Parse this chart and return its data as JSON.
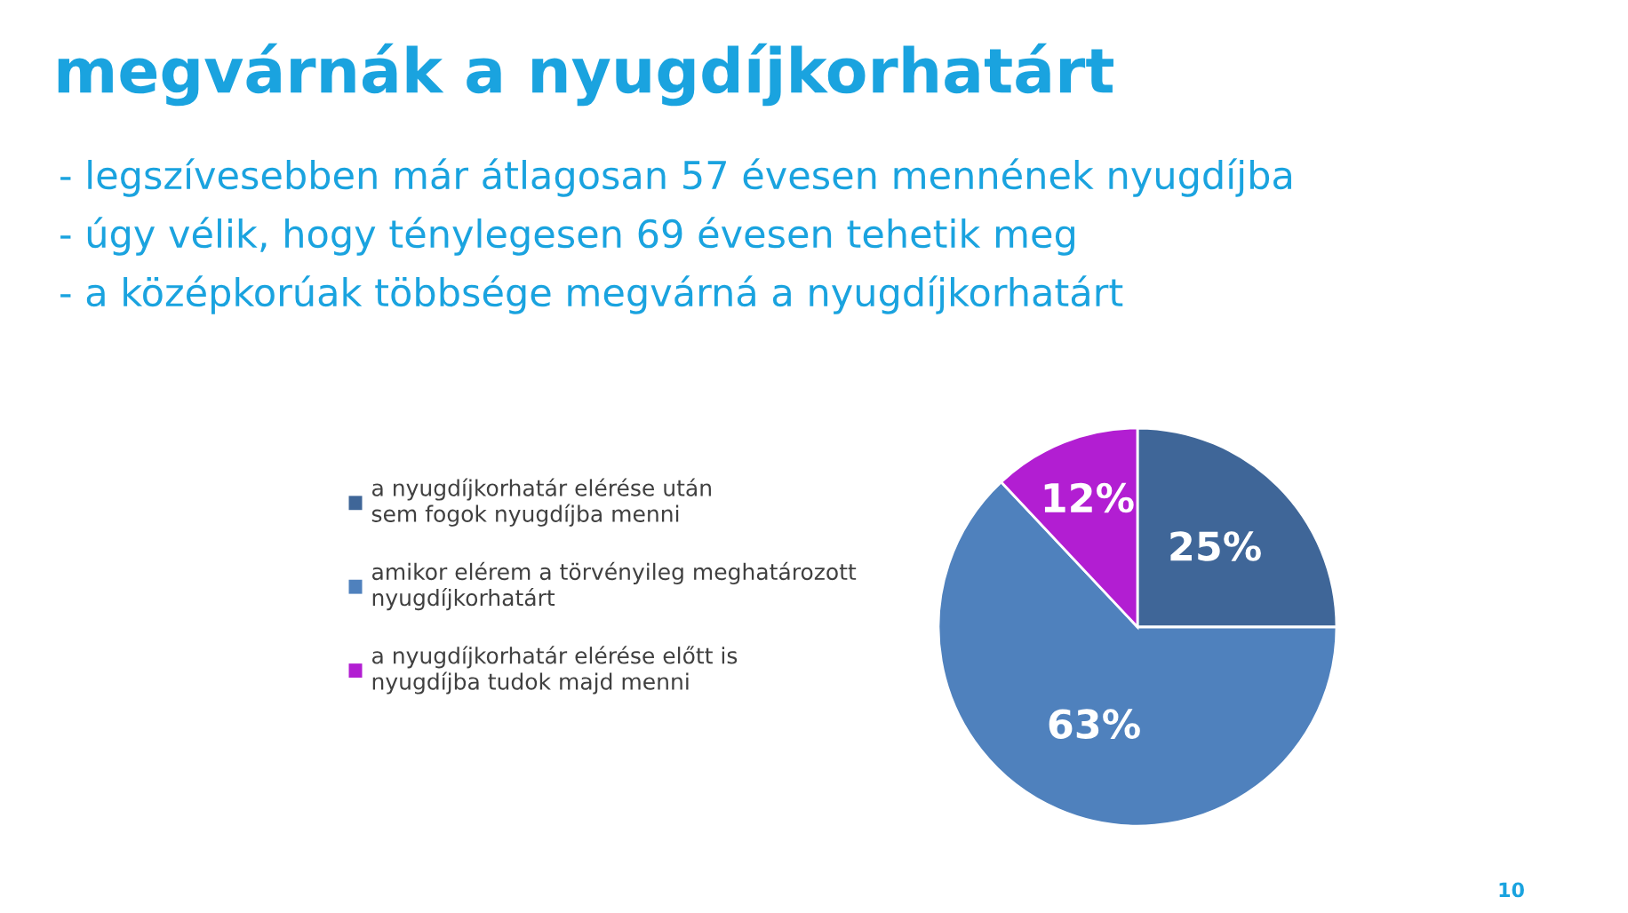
{
  "chart_data": {
    "type": "pie",
    "title": "megvárnák a nyugdíjkorhatárt",
    "categories": [
      "a nyugdíjkorhatár elérése után sem fogok nyugdíjba menni",
      "amikor elérem a törvényileg meghatározott nyugdíjkorhatárt",
      "a nyugdíjkorhatár elérése előtt is nyugdíjba tudok majd menni"
    ],
    "values": [
      25,
      63,
      12
    ],
    "colors": [
      "#3f6698",
      "#4f81bd",
      "#b21ed2"
    ],
    "value_labels": [
      "25%",
      "63%",
      "12%"
    ],
    "legend": "left",
    "annotations": [
      "- legszívesebben már átlagosan 57 évesen mennének nyugdíjba",
      "- úgy vélik, hogy ténylegesen 69 évesen tehetik meg",
      "- a középkorúak többsége megvárná a nyugdíjkorhatárt",
      "10"
    ]
  }
}
